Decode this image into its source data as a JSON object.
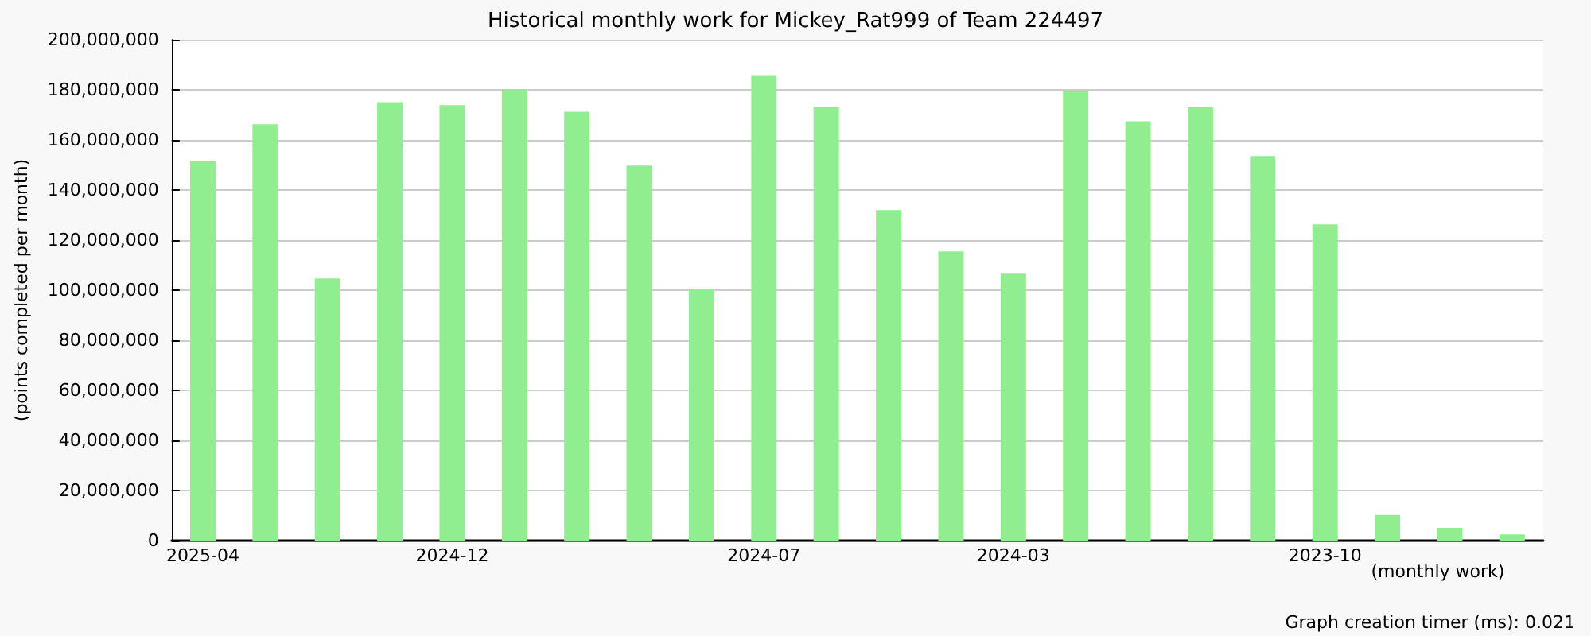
{
  "chart_data": {
    "type": "bar",
    "title": "Historical monthly work for Mickey_Rat999 of Team 224497",
    "xlabel": "(monthly work)",
    "ylabel": "(points completed per month)",
    "annotations": [
      "Graph creation timer (ms): 0.021"
    ],
    "categories": [
      "2025-04",
      null,
      null,
      null,
      "2024-12",
      null,
      null,
      null,
      null,
      "2024-07",
      null,
      null,
      null,
      "2024-03",
      null,
      null,
      null,
      null,
      "2023-10",
      null,
      null,
      null
    ],
    "values": [
      151700000,
      166300000,
      104700000,
      175100000,
      173900000,
      180200000,
      171300000,
      149800000,
      100000000,
      185900000,
      173200000,
      132000000,
      115500000,
      106600000,
      179600000,
      167500000,
      173200000,
      153600000,
      126300000,
      10200000,
      5100000,
      2500000
    ],
    "color": "#90ee90",
    "ylim": [
      0,
      200000000
    ],
    "yticks": [
      0,
      {
        "value": 20000000,
        "label": "20,000,000"
      },
      {
        "value": 40000000,
        "label": "40,000,000"
      },
      {
        "value": 60000000,
        "label": "60,000,000"
      },
      {
        "value": 80000000,
        "label": "80,000,000"
      },
      {
        "value": 100000000,
        "label": "100,000,000"
      },
      {
        "value": 120000000,
        "label": "120,000,000"
      },
      {
        "value": 140000000,
        "label": "140,000,000"
      },
      {
        "value": 160000000,
        "label": "160,000,000"
      },
      {
        "value": 180000000,
        "label": "180,000,000"
      },
      {
        "value": 200000000,
        "label": "200,000,000"
      }
    ],
    "grid": "y"
  }
}
